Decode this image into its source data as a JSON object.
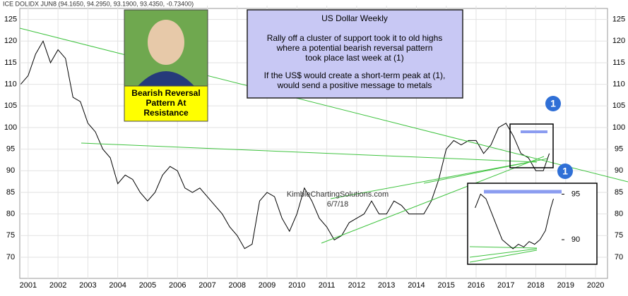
{
  "chart_data": [
    {
      "type": "line",
      "header": "ICE DOLIDX JUN8 (94.1650, 94.2950, 93.1900, 93.4350, -0.73400)",
      "title": "US Dollar Weekly",
      "annotations": [
        "Rally off a cluster of support took it to old highs",
        "where a potential bearish reversal pattern",
        "took place last week at (1)",
        "If the US$ would create a short-term peak at (1),",
        "would send a positive message to metals"
      ],
      "callout": [
        "Bearish Reversal",
        "Pattern At",
        "Resistance"
      ],
      "marker": "1",
      "watermark": [
        "KimbleChartingSolutions.com",
        "6/7/18"
      ],
      "color": "#000000",
      "x": [
        2000.75,
        2001.0,
        2001.25,
        2001.5,
        2001.75,
        2002.0,
        2002.25,
        2002.5,
        2002.75,
        2003.0,
        2003.25,
        2003.5,
        2003.75,
        2004.0,
        2004.25,
        2004.5,
        2004.75,
        2005.0,
        2005.25,
        2005.5,
        2005.75,
        2006.0,
        2006.25,
        2006.5,
        2006.75,
        2007.0,
        2007.25,
        2007.5,
        2007.75,
        2008.0,
        2008.25,
        2008.5,
        2008.75,
        2009.0,
        2009.25,
        2009.5,
        2009.75,
        2010.0,
        2010.25,
        2010.5,
        2010.75,
        2011.0,
        2011.25,
        2011.5,
        2011.75,
        2012.0,
        2012.25,
        2012.5,
        2012.75,
        2013.0,
        2013.25,
        2013.5,
        2013.75,
        2014.0,
        2014.25,
        2014.5,
        2014.75,
        2015.0,
        2015.25,
        2015.5,
        2015.75,
        2016.0,
        2016.25,
        2016.5,
        2016.75,
        2017.0,
        2017.25,
        2017.5,
        2017.75,
        2018.0,
        2018.25,
        2018.45
      ],
      "values": [
        110,
        112,
        117,
        120,
        115,
        118,
        116,
        107,
        106,
        101,
        99,
        95,
        93,
        87,
        89,
        88,
        85,
        83,
        85,
        89,
        91,
        90,
        86,
        85,
        86,
        84,
        82,
        80,
        77,
        75,
        72,
        73,
        83,
        85,
        84,
        79,
        76,
        80,
        86,
        83,
        79,
        77,
        74,
        75,
        78,
        79,
        80,
        83,
        80,
        80,
        83,
        82,
        80,
        80,
        80,
        83,
        88,
        95,
        97,
        96,
        97,
        97,
        94,
        96,
        100,
        101,
        98,
        94,
        93,
        90,
        90,
        94
      ],
      "xlim": [
        2000.72,
        2020.4
      ],
      "xticks": [
        2001,
        2002,
        2003,
        2004,
        2005,
        2006,
        2007,
        2008,
        2009,
        2010,
        2011,
        2012,
        2013,
        2014,
        2015,
        2016,
        2017,
        2018,
        2019,
        2020
      ],
      "ylim": [
        65.1,
        128.2
      ],
      "yticks": [
        70,
        75,
        80,
        85,
        90,
        95,
        100,
        105,
        110,
        115,
        120,
        125
      ],
      "grid": true
    },
    {
      "type": "line",
      "marker": "1",
      "color": "#000000",
      "x": [
        2017.0,
        2017.1,
        2017.2,
        2017.3,
        2017.4,
        2017.5,
        2017.6,
        2017.7,
        2017.8,
        2017.9,
        2018.0,
        2018.1,
        2018.2,
        2018.3,
        2018.4,
        2018.45
      ],
      "values": [
        93.5,
        95,
        94.5,
        93,
        91.5,
        90,
        89.5,
        89,
        89.5,
        89.2,
        89.8,
        89.5,
        90,
        91,
        93.5,
        94.5
      ],
      "xlim": [
        2016.9,
        2018.6
      ],
      "ylim": [
        87.3,
        96.2
      ],
      "yticks": [
        90,
        95
      ]
    }
  ]
}
